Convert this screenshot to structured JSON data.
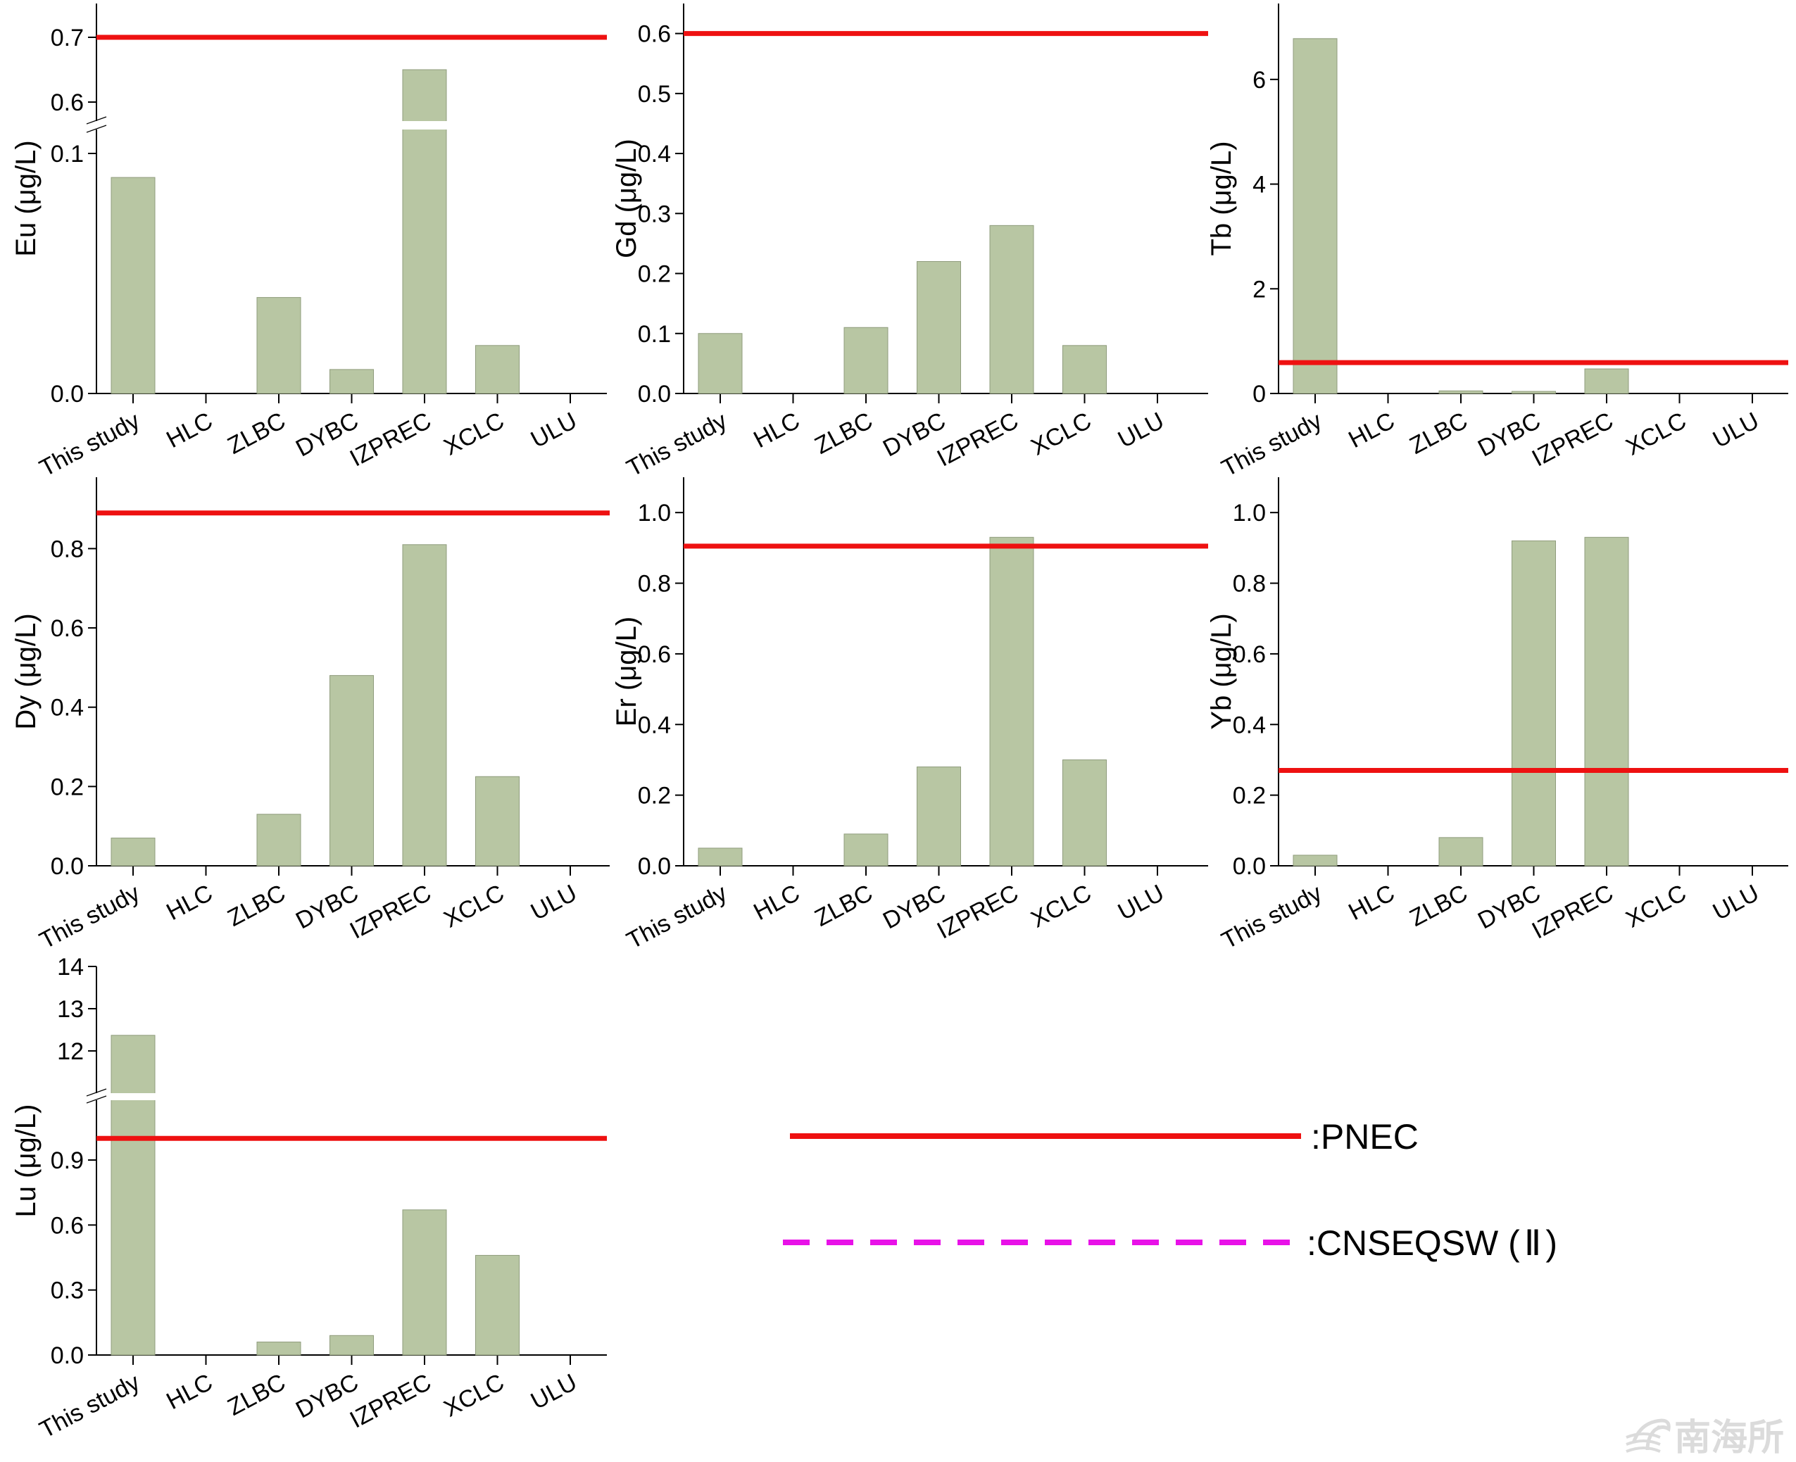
{
  "figure": {
    "bar_color": "#b8c6a3",
    "bar_edge_color": "#8f9c7c",
    "pnec_color": "#ee1111",
    "cnseqsw_color": "#e811e8"
  },
  "legend": {
    "items": [
      {
        "label": ":PNEC",
        "style": "solid",
        "color": "#ee1111"
      },
      {
        "label": ":CNSEQSW (",
        "roman": "Ⅱ",
        "suffix": ")",
        "style": "dashed",
        "color": "#e811e8"
      }
    ]
  },
  "watermark": {
    "text": "南海所",
    "icon": "wave-logo-icon"
  },
  "chart_data": [
    {
      "type": "bar",
      "element": "Eu",
      "ylabel": "Eu (μg/L)",
      "categories": [
        "This study",
        "HLC",
        "ZLBC",
        "DYBC",
        "IZPREC",
        "XCLC",
        "ULU"
      ],
      "values": [
        0.09,
        0,
        0.04,
        0.01,
        0.65,
        0.02,
        0
      ],
      "pnec": 0.7,
      "axis_break": {
        "lower": [
          0,
          0.11
        ],
        "upper": [
          0.58,
          0.72
        ]
      },
      "yticks": [
        {
          "v": 0.0,
          "label": "0.0"
        },
        {
          "v": 0.1,
          "label": "0.1"
        },
        {
          "v": 0.6,
          "label": "0.6"
        },
        {
          "v": 0.7,
          "label": "0.7"
        }
      ]
    },
    {
      "type": "bar",
      "element": "Gd",
      "ylabel": "Gd (μg/L)",
      "categories": [
        "This study",
        "HLC",
        "ZLBC",
        "DYBC",
        "IZPREC",
        "XCLC",
        "ULU"
      ],
      "values": [
        0.1,
        0,
        0.11,
        0.22,
        0.28,
        0.08,
        0
      ],
      "pnec": 0.6,
      "ylim": [
        0,
        0.65
      ],
      "yticks": [
        {
          "v": 0.0,
          "label": "0.0"
        },
        {
          "v": 0.1,
          "label": "0.1"
        },
        {
          "v": 0.2,
          "label": "0.2"
        },
        {
          "v": 0.3,
          "label": "0.3"
        },
        {
          "v": 0.4,
          "label": "0.4"
        },
        {
          "v": 0.5,
          "label": "0.5"
        },
        {
          "v": 0.6,
          "label": "0.6"
        }
      ]
    },
    {
      "type": "bar",
      "element": "Tb",
      "ylabel": "Tb (μg/L)",
      "categories": [
        "This study",
        "HLC",
        "ZLBC",
        "DYBC",
        "IZPREC",
        "XCLC",
        "ULU"
      ],
      "values": [
        6.78,
        0,
        0.05,
        0.04,
        0.47,
        0,
        0
      ],
      "pnec": 0.59,
      "ylim": [
        0,
        7.45
      ],
      "yticks": [
        {
          "v": 0,
          "label": "0"
        },
        {
          "v": 2,
          "label": "2"
        },
        {
          "v": 4,
          "label": "4"
        },
        {
          "v": 6,
          "label": "6"
        }
      ]
    },
    {
      "type": "bar",
      "element": "Dy",
      "ylabel": "Dy (μg/L)",
      "categories": [
        "This study",
        "HLC",
        "ZLBC",
        "DYBC",
        "IZPREC",
        "XCLC",
        "ULU"
      ],
      "values": [
        0.07,
        0,
        0.13,
        0.48,
        0.81,
        0.225,
        0
      ],
      "pnec": 0.89,
      "ylim": [
        0,
        0.98
      ],
      "yticks": [
        {
          "v": 0.0,
          "label": "0.0"
        },
        {
          "v": 0.2,
          "label": "0.2"
        },
        {
          "v": 0.4,
          "label": "0.4"
        },
        {
          "v": 0.6,
          "label": "0.6"
        },
        {
          "v": 0.8,
          "label": "0.8"
        }
      ]
    },
    {
      "type": "bar",
      "element": "Er",
      "ylabel": "Er (μg/L)",
      "categories": [
        "This study",
        "HLC",
        "ZLBC",
        "DYBC",
        "IZPREC",
        "XCLC",
        "ULU"
      ],
      "values": [
        0.05,
        0,
        0.09,
        0.28,
        0.93,
        0.3,
        0
      ],
      "pnec": 0.905,
      "ylim": [
        0,
        1.1
      ],
      "yticks": [
        {
          "v": 0.0,
          "label": "0.0"
        },
        {
          "v": 0.2,
          "label": "0.2"
        },
        {
          "v": 0.4,
          "label": "0.4"
        },
        {
          "v": 0.6,
          "label": "0.6"
        },
        {
          "v": 0.8,
          "label": "0.8"
        },
        {
          "v": 1.0,
          "label": "1.0"
        }
      ]
    },
    {
      "type": "bar",
      "element": "Yb",
      "ylabel": "Yb (μg/L)",
      "categories": [
        "This study",
        "HLC",
        "ZLBC",
        "DYBC",
        "IZPREC",
        "XCLC",
        "ULU"
      ],
      "values": [
        0.03,
        0,
        0.08,
        0.92,
        0.93,
        0,
        0
      ],
      "pnec": 0.27,
      "ylim": [
        0,
        1.1
      ],
      "yticks": [
        {
          "v": 0.0,
          "label": "0.0"
        },
        {
          "v": 0.2,
          "label": "0.2"
        },
        {
          "v": 0.4,
          "label": "0.4"
        },
        {
          "v": 0.6,
          "label": "0.6"
        },
        {
          "v": 0.8,
          "label": "0.8"
        },
        {
          "v": 1.0,
          "label": "1.0"
        }
      ]
    },
    {
      "type": "bar",
      "element": "Lu",
      "ylabel": "Lu (μg/L)",
      "categories": [
        "This study",
        "HLC",
        "ZLBC",
        "DYBC",
        "IZPREC",
        "XCLC",
        "ULU"
      ],
      "values": [
        12.37,
        0,
        0.06,
        0.09,
        0.67,
        0.46,
        0
      ],
      "pnec": 1.0,
      "axis_break": {
        "lower": [
          0,
          1.2
        ],
        "upper": [
          11.0,
          14.0
        ]
      },
      "yticks": [
        {
          "v": 0.0,
          "label": "0.0"
        },
        {
          "v": 0.3,
          "label": "0.3"
        },
        {
          "v": 0.6,
          "label": "0.6"
        },
        {
          "v": 0.9,
          "label": "0.9"
        },
        {
          "v": 12,
          "label": "12"
        },
        {
          "v": 13,
          "label": "13"
        },
        {
          "v": 14,
          "label": "14"
        }
      ]
    }
  ]
}
